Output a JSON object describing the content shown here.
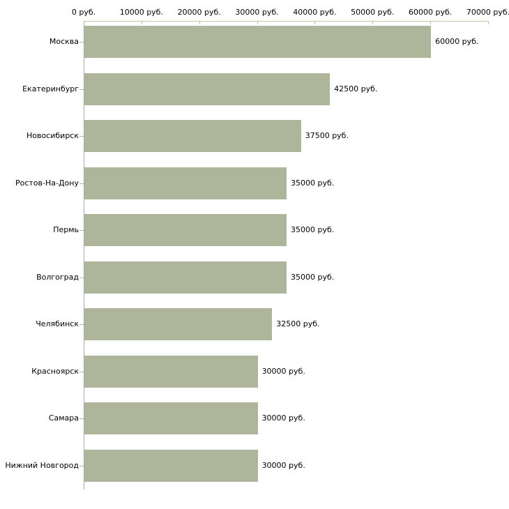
{
  "chart_data": {
    "type": "bar",
    "orientation": "horizontal",
    "title": "",
    "xlabel": "",
    "ylabel": "",
    "unit": "руб.",
    "xlim": [
      0,
      70000
    ],
    "grid": false,
    "legend": "none",
    "categories": [
      "Москва",
      "Екатеринбург",
      "Новосибирск",
      "Ростов-На-Дону",
      "Пермь",
      "Волгоград",
      "Челябинск",
      "Красноярск",
      "Самара",
      "Нижний Новгород"
    ],
    "values": [
      60000,
      42500,
      37500,
      35000,
      35000,
      35000,
      32500,
      30000,
      30000,
      30000
    ],
    "value_labels": [
      "60000 руб.",
      "42500 руб.",
      "37500 руб.",
      "35000 руб.",
      "35000 руб.",
      "35000 руб.",
      "32500 руб.",
      "30000 руб.",
      "30000 руб.",
      "30000 руб."
    ],
    "x_tick_values": [
      0,
      10000,
      20000,
      30000,
      40000,
      50000,
      60000,
      70000
    ],
    "x_tick_labels": [
      "0 руб.",
      "10000 руб.",
      "20000 руб.",
      "30000 руб.",
      "40000 руб.",
      "50000 руб.",
      "60000 руб.",
      "70000 руб."
    ],
    "colors": {
      "bar_fill": "#adb59a",
      "x_axis_line": "#c6c6a8",
      "x_tick_mark": "#c2c29a",
      "y_axis_line": "#a9a9a9",
      "category_tick": "#b2b2a2",
      "text": "#000000",
      "background": "#ffffff"
    }
  }
}
